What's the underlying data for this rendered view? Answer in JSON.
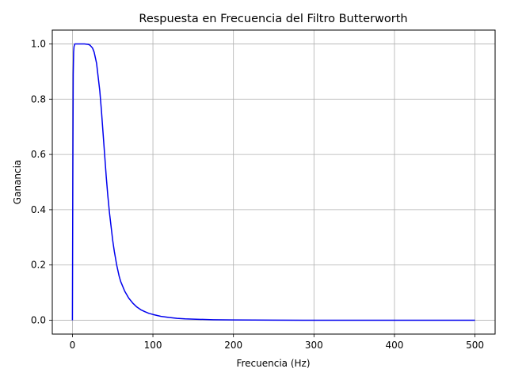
{
  "chart_data": {
    "type": "line",
    "title": "Respuesta en Frecuencia del Filtro Butterworth",
    "xlabel": "Frecuencia (Hz)",
    "ylabel": "Ganancia",
    "xlim": [
      -25,
      525
    ],
    "ylim": [
      -0.05,
      1.05
    ],
    "xticks": [
      0,
      100,
      200,
      300,
      400,
      500
    ],
    "yticks": [
      0.0,
      0.2,
      0.4,
      0.6,
      0.8,
      1.0
    ],
    "ytick_labels": [
      "0.0",
      "0.2",
      "0.4",
      "0.6",
      "0.8",
      "1.0"
    ],
    "grid": true,
    "series": [
      {
        "color": "#0000ee",
        "x": [
          0,
          0.5,
          1,
          1.5,
          2,
          3,
          5,
          10,
          15,
          20,
          22,
          25,
          27,
          30,
          32,
          34,
          36,
          38,
          40,
          42,
          44,
          46,
          48,
          50,
          52,
          55,
          58,
          60,
          65,
          70,
          75,
          80,
          85,
          90,
          95,
          100,
          110,
          120,
          130,
          140,
          150,
          175,
          200,
          250,
          300,
          350,
          400,
          450,
          500
        ],
        "y": [
          0.0,
          0.5,
          0.89,
          0.97,
          0.99,
          1.0,
          1.0,
          1.0,
          1.0,
          0.998,
          0.995,
          0.985,
          0.97,
          0.93,
          0.88,
          0.83,
          0.76,
          0.68,
          0.6,
          0.52,
          0.45,
          0.39,
          0.34,
          0.29,
          0.25,
          0.2,
          0.16,
          0.14,
          0.105,
          0.08,
          0.062,
          0.048,
          0.038,
          0.031,
          0.025,
          0.021,
          0.014,
          0.01,
          0.007,
          0.005,
          0.004,
          0.002,
          0.0012,
          0.0005,
          0.0002,
          0.0001,
          0.0,
          0.0,
          0.0
        ]
      }
    ]
  }
}
